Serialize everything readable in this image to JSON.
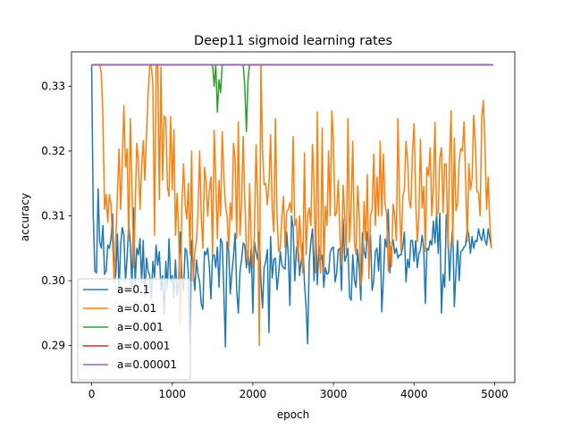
{
  "chart_data": {
    "type": "line",
    "title": "Deep11 sigmoid learning rates",
    "xlabel": "epoch",
    "ylabel": "accuracy",
    "xlim": [
      -250,
      5250
    ],
    "ylim": [
      0.2843,
      0.3353
    ],
    "xticks": [
      0,
      1000,
      2000,
      3000,
      4000,
      5000
    ],
    "yticks": [
      0.29,
      0.3,
      0.31,
      0.32,
      0.33
    ],
    "ytick_labels": [
      "0.29",
      "0.30",
      "0.31",
      "0.32",
      "0.33"
    ],
    "grid": false,
    "legend_position": "lower-left",
    "x_start": 0,
    "x_step": 20,
    "series": [
      {
        "name": "a=0.1",
        "color": "#1f77b4",
        "values": [
          0.3333,
          0.31,
          0.3015,
          0.3012,
          0.3142,
          0.306,
          0.305,
          0.3085,
          0.301,
          0.3015,
          0.3055,
          0.305,
          0.3065,
          0.3103,
          0.2998,
          0.301,
          0.3072,
          0.2985,
          0.3055,
          0.3082,
          0.307,
          0.3,
          0.3035,
          0.309,
          0.3058,
          0.2988,
          0.3112,
          0.2995,
          0.305,
          0.304,
          0.3065,
          0.2998,
          0.3062,
          0.2976,
          0.3035,
          0.3015,
          0.3008,
          0.2972,
          0.303,
          0.3005,
          0.3055,
          0.3024,
          0.3045,
          0.2985,
          0.3008,
          0.2948,
          0.303,
          0.2988,
          0.3065,
          0.2998,
          0.3008,
          0.2975,
          0.3032,
          0.2978,
          0.2998,
          0.3075,
          0.3004,
          0.2985,
          0.305,
          0.3045,
          0.301,
          0.2903,
          0.3062,
          0.302,
          0.2985,
          0.3032,
          0.301,
          0.2998,
          0.2964,
          0.2956,
          0.3045,
          0.304,
          0.305,
          0.3022,
          0.2972,
          0.3038,
          0.304,
          0.302,
          0.3052,
          0.299,
          0.3065,
          0.3058,
          0.2983,
          0.2898,
          0.306,
          0.3047,
          0.298,
          0.3012,
          0.3038,
          0.3073,
          0.2985,
          0.295,
          0.3014,
          0.3032,
          0.3058,
          0.3055,
          0.302,
          0.3045,
          0.3012,
          0.305,
          0.295,
          0.306,
          0.3044,
          0.3032,
          0.3075,
          0.3,
          0.2958,
          0.302,
          0.303,
          0.3048,
          0.292,
          0.3068,
          0.3004,
          0.3033,
          0.3035,
          0.2986,
          0.301,
          0.3045,
          0.3024,
          0.302,
          0.3018,
          0.3075,
          0.3038,
          0.2962,
          0.31,
          0.3082,
          0.3,
          0.3048,
          0.306,
          0.3008,
          0.303,
          0.3058,
          0.2998,
          0.296,
          0.2903,
          0.303,
          0.306,
          0.308,
          0.3,
          0.309,
          0.2994,
          0.3055,
          0.303,
          0.304,
          0.299,
          0.302,
          0.301,
          0.3012,
          0.3044,
          0.305,
          0.3052,
          0.2998,
          0.3012,
          0.3048,
          0.305,
          0.2985,
          0.3095,
          0.303,
          0.3038,
          0.305,
          0.2975,
          0.297,
          0.304,
          0.3002,
          0.299,
          0.3048,
          0.302,
          0.297,
          0.3074,
          0.3045,
          0.3035,
          0.3075,
          0.305,
          0.307,
          0.2985,
          0.3,
          0.3045,
          0.305,
          0.3015,
          0.307,
          0.2952,
          0.3004,
          0.3064,
          0.3052,
          0.311,
          0.3012,
          0.305,
          0.3063,
          0.3042,
          0.305,
          0.3035,
          0.304,
          0.304,
          0.3052,
          0.3075,
          0.2998,
          0.3033,
          0.302,
          0.3062,
          0.3062,
          0.303,
          0.3062,
          0.302,
          0.3042,
          0.3048,
          0.307,
          0.305,
          0.2965,
          0.305,
          0.3047,
          0.3062,
          0.3055,
          0.3092,
          0.3058,
          0.3105,
          0.3042,
          0.3104,
          0.295,
          0.301,
          0.299,
          0.3102,
          0.308,
          0.3,
          0.3052,
          0.3085,
          0.296,
          0.3014,
          0.3062,
          0.3,
          0.3045,
          0.3047,
          0.3052,
          0.3055,
          0.308,
          0.307,
          0.3042,
          0.3068,
          0.305,
          0.3062,
          0.306,
          0.308,
          0.3068,
          0.3062,
          0.308,
          0.3063,
          0.3055,
          0.308,
          0.3065,
          0.3052
        ]
      },
      {
        "name": "a=0.01",
        "color": "#ff7f0e",
        "values": [
          0.3333,
          0.3333,
          0.3333,
          0.3333,
          0.3333,
          0.3333,
          0.332,
          0.3252,
          0.311,
          0.3133,
          0.309,
          0.3133,
          0.3118,
          0.3055,
          0.3,
          0.3065,
          0.3133,
          0.3203,
          0.311,
          0.3185,
          0.327,
          0.3175,
          0.3203,
          0.3062,
          0.325,
          0.315,
          0.302,
          0.311,
          0.3212,
          0.3185,
          0.311,
          0.3175,
          0.3216,
          0.3155,
          0.3223,
          0.3285,
          0.3333,
          0.3333,
          0.33,
          0.307,
          0.3333,
          0.3333,
          0.3125,
          0.333,
          0.3155,
          0.3254,
          0.325,
          0.3145,
          0.313,
          0.3253,
          0.314,
          0.3233,
          0.307,
          0.3135,
          0.3075,
          0.2933,
          0.3118,
          0.318,
          0.3118,
          0.3095,
          0.315,
          0.304,
          0.32,
          0.3,
          0.3045,
          0.306,
          0.3105,
          0.32,
          0.31,
          0.305,
          0.3175,
          0.3152,
          0.31,
          0.314,
          0.316,
          0.304,
          0.3232,
          0.3157,
          0.3065,
          0.3155,
          0.31,
          0.323,
          0.316,
          0.3117,
          0.31,
          0.305,
          0.312,
          0.3093,
          0.3212,
          0.3187,
          0.3065,
          0.3245,
          0.307,
          0.312,
          0.3222,
          0.3125,
          0.305,
          0.3025,
          0.315,
          0.3057,
          0.302,
          0.3075,
          0.321,
          0.312,
          0.29,
          0.3333,
          0.32,
          0.3148,
          0.315,
          0.3117,
          0.315,
          0.3225,
          0.311,
          0.3075,
          0.325,
          0.31,
          0.3045,
          0.305,
          0.31,
          0.313,
          0.3052,
          0.3106,
          0.311,
          0.312,
          0.3105,
          0.3222,
          0.3085,
          0.3095,
          0.303,
          0.31,
          0.305,
          0.3012,
          0.3197,
          0.304,
          0.31,
          0.3112,
          0.3085,
          0.321,
          0.3144,
          0.3012,
          0.326,
          0.305,
          0.3012,
          0.3235,
          0.3014,
          0.3115,
          0.3085,
          0.32,
          0.31,
          0.3262,
          0.3212,
          0.31,
          0.3106,
          0.3155,
          0.307,
          0.3025,
          0.3147,
          0.31,
          0.3042,
          0.325,
          0.306,
          0.3115,
          0.3215,
          0.306,
          0.304,
          0.3146,
          0.31,
          0.2993,
          0.3012,
          0.3122,
          0.3062,
          0.3164,
          0.3003,
          0.31,
          0.311,
          0.3195,
          0.3085,
          0.316,
          0.31,
          0.3215,
          0.31,
          0.3195,
          0.3118,
          0.3103,
          0.3015,
          0.306,
          0.3022,
          0.3118,
          0.31,
          0.3062,
          0.325,
          0.3122,
          0.3045,
          0.313,
          0.314,
          0.3215,
          0.3185,
          0.3124,
          0.3112,
          0.3195,
          0.3242,
          0.313,
          0.306,
          0.31,
          0.3218,
          0.3112,
          0.3145,
          0.3045,
          0.3175,
          0.3162,
          0.3205,
          0.31,
          0.3145,
          0.3244,
          0.31,
          0.3107,
          0.319,
          0.3205,
          0.3105,
          0.318,
          0.318,
          0.305,
          0.3185,
          0.3262,
          0.3054,
          0.322,
          0.3108,
          0.312,
          0.3185,
          0.3204,
          0.32,
          0.3245,
          0.3155,
          0.306,
          0.318,
          0.314,
          0.3157,
          0.3255,
          0.3213,
          0.3138,
          0.3135,
          0.31,
          0.3252,
          0.3278,
          0.321,
          0.311,
          0.316,
          0.309,
          0.305
        ]
      },
      {
        "name": "a=0.001",
        "color": "#2ca02c",
        "values": [
          0.3333,
          0.3333,
          0.3333,
          0.3333,
          0.3333,
          0.3333,
          0.3333,
          0.3333,
          0.3333,
          0.3333,
          0.3333,
          0.3333,
          0.3333,
          0.3333,
          0.3333,
          0.3333,
          0.3333,
          0.3333,
          0.3333,
          0.3333,
          0.3333,
          0.3333,
          0.3333,
          0.3333,
          0.3333,
          0.3333,
          0.3333,
          0.3333,
          0.3333,
          0.3333,
          0.3333,
          0.3333,
          0.3333,
          0.3333,
          0.3333,
          0.3333,
          0.3333,
          0.3333,
          0.3333,
          0.3333,
          0.3333,
          0.3333,
          0.3333,
          0.3333,
          0.3333,
          0.3333,
          0.3333,
          0.3333,
          0.3333,
          0.3333,
          0.3333,
          0.3333,
          0.3333,
          0.3333,
          0.3333,
          0.3333,
          0.3333,
          0.3333,
          0.3333,
          0.3333,
          0.3333,
          0.3333,
          0.3333,
          0.3333,
          0.3333,
          0.3333,
          0.3333,
          0.3333,
          0.3333,
          0.3333,
          0.3333,
          0.3333,
          0.3333,
          0.3333,
          0.3333,
          0.3333,
          0.33,
          0.3333,
          0.326,
          0.331,
          0.329,
          0.3333,
          0.3333,
          0.3333,
          0.3333,
          0.3333,
          0.3333,
          0.3333,
          0.3333,
          0.3333,
          0.3333,
          0.3333,
          0.3333,
          0.3333,
          0.3333,
          0.33,
          0.323,
          0.331,
          0.3333,
          0.3333,
          0.3333,
          0.3333,
          0.3333,
          0.3333,
          0.3333,
          0.3333,
          0.3333,
          0.3333,
          0.3333,
          0.3333,
          0.3333,
          0.3333,
          0.3333,
          0.3333,
          0.3333,
          0.3333,
          0.3333,
          0.3333,
          0.3333,
          0.3333,
          0.3333,
          0.3333,
          0.3333,
          0.3333,
          0.3333,
          0.3333,
          0.3333,
          0.3333,
          0.3333,
          0.3333,
          0.3333,
          0.3333,
          0.3333,
          0.3333,
          0.3333,
          0.3333,
          0.3333,
          0.3333,
          0.3333,
          0.3333,
          0.3333,
          0.3333,
          0.3333,
          0.3333,
          0.3333,
          0.3333,
          0.3333,
          0.3333,
          0.3333,
          0.3333,
          0.3333,
          0.3333,
          0.3333,
          0.3333,
          0.3333,
          0.3333,
          0.3333,
          0.3333,
          0.3333,
          0.3333,
          0.3333,
          0.3333,
          0.3333,
          0.3333,
          0.3333,
          0.3333,
          0.3333,
          0.3333,
          0.3333,
          0.3333,
          0.3333,
          0.3333,
          0.3333,
          0.3333,
          0.3333,
          0.3333,
          0.3333,
          0.3333,
          0.3333,
          0.3333,
          0.3333,
          0.3333,
          0.3333,
          0.3333,
          0.3333,
          0.3333,
          0.3333,
          0.3333,
          0.3333,
          0.3333,
          0.3333,
          0.3333,
          0.3333,
          0.3333,
          0.3333,
          0.3333,
          0.3333,
          0.3333,
          0.3333,
          0.3333,
          0.3333,
          0.3333,
          0.3333,
          0.3333,
          0.3333,
          0.3333,
          0.3333,
          0.3333,
          0.3333,
          0.3333,
          0.3333,
          0.3333,
          0.3333,
          0.3333,
          0.3333,
          0.3333,
          0.3333,
          0.3333,
          0.3333,
          0.3333,
          0.3333,
          0.3333,
          0.3333,
          0.3333,
          0.3333,
          0.3333,
          0.3333,
          0.3333,
          0.3333,
          0.3333,
          0.3333,
          0.3333,
          0.3333,
          0.3333,
          0.3333,
          0.3333,
          0.3333,
          0.3333,
          0.3333,
          0.3333,
          0.3333,
          0.3333,
          0.3333,
          0.3333,
          0.3333,
          0.3333,
          0.3333,
          0.3333,
          0.3333,
          0.3333
        ]
      },
      {
        "name": "a=0.0001",
        "color": "#d62728",
        "values": [
          0.3333,
          0.3333
        ]
      },
      {
        "name": "a=0.00001",
        "color": "#9467bd",
        "values": [
          0.3333,
          0.3333
        ]
      }
    ]
  }
}
